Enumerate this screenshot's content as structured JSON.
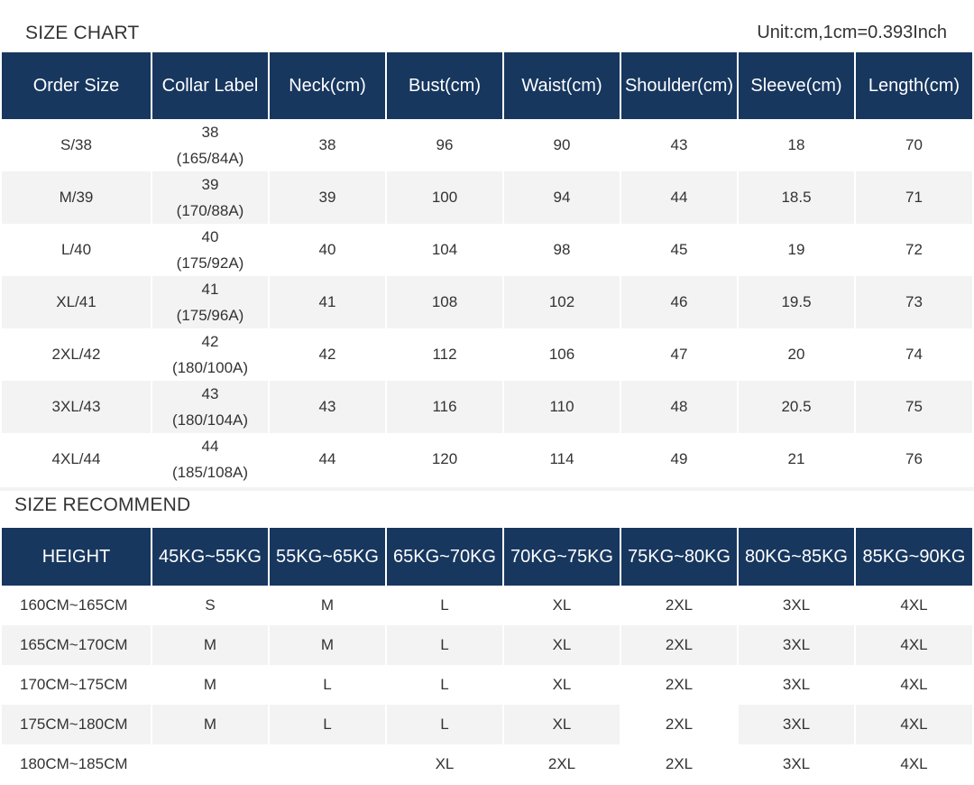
{
  "size_chart": {
    "title": "SIZE CHART",
    "unit_note": "Unit:cm,1cm=0.393Inch",
    "headers": [
      "Order Size",
      "Collar Label",
      "Neck(cm)",
      "Bust(cm)",
      "Waist(cm)",
      "Shoulder(cm)",
      "Sleeve(cm)",
      "Length(cm)"
    ],
    "rows": [
      {
        "order": "S/38",
        "collar": "38",
        "collar_sub": "(165/84A)",
        "neck": "38",
        "bust": "96",
        "waist": "90",
        "shoulder": "43",
        "sleeve": "18",
        "length": "70"
      },
      {
        "order": "M/39",
        "collar": "39",
        "collar_sub": "(170/88A)",
        "neck": "39",
        "bust": "100",
        "waist": "94",
        "shoulder": "44",
        "sleeve": "18.5",
        "length": "71"
      },
      {
        "order": "L/40",
        "collar": "40",
        "collar_sub": "(175/92A)",
        "neck": "40",
        "bust": "104",
        "waist": "98",
        "shoulder": "45",
        "sleeve": "19",
        "length": "72"
      },
      {
        "order": "XL/41",
        "collar": "41",
        "collar_sub": "(175/96A)",
        "neck": "41",
        "bust": "108",
        "waist": "102",
        "shoulder": "46",
        "sleeve": "19.5",
        "length": "73"
      },
      {
        "order": "2XL/42",
        "collar": "42",
        "collar_sub": "(180/100A)",
        "neck": "42",
        "bust": "112",
        "waist": "106",
        "shoulder": "47",
        "sleeve": "20",
        "length": "74"
      },
      {
        "order": "3XL/43",
        "collar": "43",
        "collar_sub": "(180/104A)",
        "neck": "43",
        "bust": "116",
        "waist": "110",
        "shoulder": "48",
        "sleeve": "20.5",
        "length": "75"
      },
      {
        "order": "4XL/44",
        "collar": "44",
        "collar_sub": "(185/108A)",
        "neck": "44",
        "bust": "120",
        "waist": "114",
        "shoulder": "49",
        "sleeve": "21",
        "length": "76"
      }
    ]
  },
  "size_recommend": {
    "title": "SIZE RECOMMEND",
    "headers": [
      "HEIGHT",
      "45KG~55KG",
      "55KG~65KG",
      "65KG~70KG",
      "70KG~75KG",
      "75KG~80KG",
      "80KG~85KG",
      "85KG~90KG"
    ],
    "rows": [
      [
        "160CM~165CM",
        "S",
        "M",
        "L",
        "XL",
        "2XL",
        "3XL",
        "4XL"
      ],
      [
        "165CM~170CM",
        "M",
        "M",
        "L",
        "XL",
        "2XL",
        "3XL",
        "4XL"
      ],
      [
        "170CM~175CM",
        "M",
        "L",
        "L",
        "XL",
        "2XL",
        "3XL",
        "4XL"
      ],
      [
        "175CM~180CM",
        "M",
        "L",
        "L",
        "XL",
        "2XL",
        "3XL",
        "4XL"
      ],
      [
        "180CM~185CM",
        "",
        "",
        "XL",
        "2XL",
        "2XL",
        "3XL",
        "4XL"
      ]
    ]
  },
  "colors": {
    "header_bg": "#17375f",
    "header_text": "#ffffff",
    "stripe": "#f3f3f3"
  }
}
